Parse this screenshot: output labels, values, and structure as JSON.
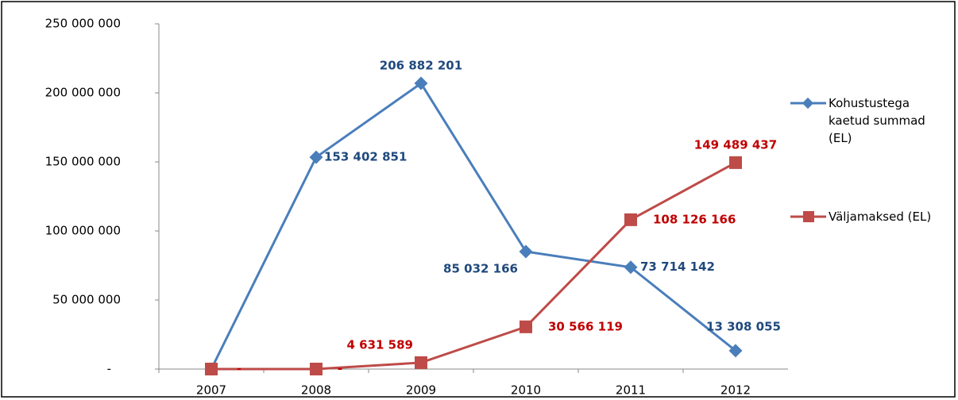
{
  "chart_data": {
    "type": "line",
    "categories": [
      "2007",
      "2008",
      "2009",
      "2010",
      "2011",
      "2012"
    ],
    "series": [
      {
        "name": "Kohustustega kaetud summad (EL)",
        "color": "#4a7ebb",
        "values": [
          0,
          153402851,
          206882201,
          85032166,
          73714142,
          13308055
        ],
        "value_labels": [
          "-",
          "153 402 851",
          "206 882 201",
          "85 032 166",
          "73 714 142",
          "13 308 055"
        ]
      },
      {
        "name": "Väljamaksed (EL)",
        "color": "#be4b48",
        "values": [
          0,
          0,
          4631589,
          30566119,
          108126166,
          149489437
        ],
        "value_labels": [
          "-",
          "-",
          "4 631 589",
          "30 566 119",
          "108 126 166",
          "149 489 437"
        ]
      }
    ],
    "ylim": [
      0,
      250000000
    ],
    "yticks": [
      {
        "value": 0,
        "label": "-"
      },
      {
        "value": 50000000,
        "label": "50 000 000"
      },
      {
        "value": 100000000,
        "label": "100 000 000"
      },
      {
        "value": 150000000,
        "label": "150 000 000"
      },
      {
        "value": 200000000,
        "label": "200 000 000"
      },
      {
        "value": 250000000,
        "label": "250 000 000"
      }
    ],
    "grid": false,
    "legend": "right"
  }
}
